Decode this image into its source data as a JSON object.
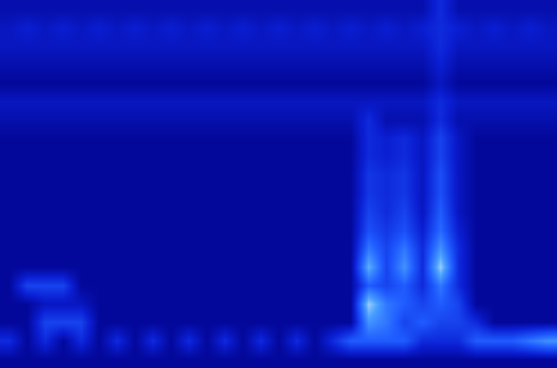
{
  "chart_data": {
    "type": "heatmap",
    "tick_labels": false,
    "grid": false,
    "zlim": [
      0,
      10
    ],
    "cells": [
      [
        1.5,
        1.5,
        1.5,
        1.5,
        1.5,
        1.5,
        1.5,
        1.5,
        1.5,
        1.5,
        1.5,
        1.5,
        1.5,
        1.5,
        1.5,
        1.5,
        1.5,
        1.5,
        1.5,
        1.5,
        1.5,
        1.5,
        1.5,
        1.5,
        3,
        1.5,
        1.5,
        1.5,
        1.5,
        1.5,
        1.5
      ],
      [
        2,
        2.5,
        2,
        2.5,
        2,
        2.5,
        2,
        2.5,
        2,
        2.5,
        2,
        2.5,
        2,
        2.5,
        2,
        2.5,
        2,
        2.5,
        2,
        2.5,
        2,
        2.5,
        2,
        2.5,
        3,
        2.5,
        2,
        2.5,
        2,
        2.5,
        2
      ],
      [
        2,
        2,
        2,
        2,
        2,
        2,
        2,
        2,
        2,
        2,
        2,
        2,
        2,
        2,
        2,
        2,
        2,
        2,
        2,
        2,
        2,
        2,
        2,
        2,
        3,
        2,
        2,
        2,
        2,
        2,
        2
      ],
      [
        1.5,
        1.5,
        1.5,
        1.5,
        1.5,
        1.5,
        1.5,
        1.5,
        1.5,
        1.5,
        1.5,
        1.5,
        1.5,
        1.5,
        1.5,
        1.5,
        1.5,
        1.5,
        1.5,
        1.5,
        1.5,
        1.5,
        1.5,
        1.5,
        2.5,
        1.5,
        1.5,
        1.5,
        1.5,
        1.5,
        1.5
      ],
      [
        1,
        1,
        1,
        1,
        1,
        1,
        1,
        1,
        1,
        1,
        1,
        1,
        1,
        1,
        1,
        1,
        1,
        1,
        1,
        1,
        1,
        1,
        1,
        1,
        2,
        1,
        1,
        1,
        1,
        1,
        1
      ],
      [
        2,
        2,
        2,
        2,
        2,
        2,
        2,
        2,
        2,
        2,
        2,
        2,
        2,
        2,
        2,
        2,
        2,
        2,
        2,
        2,
        2,
        2,
        2,
        2,
        3,
        2,
        2,
        2,
        2,
        2,
        2
      ],
      [
        1.5,
        1.5,
        1.5,
        1.5,
        1.5,
        1.5,
        1.5,
        1.5,
        1.5,
        1.5,
        1.5,
        1.5,
        1.5,
        1.5,
        1.5,
        1.5,
        1.5,
        1.5,
        1.5,
        1.5,
        3,
        1.5,
        1.5,
        1.5,
        3,
        1.5,
        1.5,
        1.5,
        1.5,
        1.5,
        1.5
      ],
      [
        1,
        1,
        1,
        1,
        1,
        1,
        1,
        1,
        1,
        1,
        1,
        1,
        1,
        1,
        1,
        1,
        1,
        1,
        1,
        1,
        3,
        2.5,
        3,
        2,
        4,
        2,
        1,
        1,
        1,
        1,
        1
      ],
      [
        1,
        1,
        1,
        1,
        1,
        1,
        1,
        1,
        1,
        1,
        1,
        1,
        1,
        1,
        1,
        1,
        1,
        1,
        1,
        1,
        3,
        2.5,
        3,
        2,
        4,
        2,
        1,
        1,
        1,
        1,
        1
      ],
      [
        1,
        1,
        1,
        1,
        1,
        1,
        1,
        1,
        1,
        1,
        1,
        1,
        1,
        1,
        1,
        1,
        1,
        1,
        1,
        1,
        3.5,
        3,
        3.5,
        2,
        4.5,
        2,
        1,
        1,
        1,
        1,
        1
      ],
      [
        1,
        1,
        1,
        1,
        1,
        1,
        1,
        1,
        1,
        1,
        1,
        1,
        1,
        1,
        1,
        1,
        1,
        1,
        1,
        1,
        3.5,
        3,
        3.5,
        2,
        4.5,
        2,
        1,
        1,
        1,
        1,
        1
      ],
      [
        1,
        1,
        1,
        1,
        1,
        1,
        1,
        1,
        1,
        1,
        1,
        1,
        1,
        1,
        1,
        1,
        1,
        1,
        1,
        1,
        4,
        3,
        4,
        2,
        5,
        2,
        1,
        1,
        1,
        1,
        1
      ],
      [
        1,
        1,
        1,
        1,
        1,
        1,
        1,
        1,
        1,
        1,
        1,
        1,
        1,
        1,
        1,
        1,
        1,
        1,
        1,
        1,
        4.5,
        3.5,
        4.5,
        2.5,
        5.5,
        2.5,
        1,
        1,
        1,
        1,
        1
      ],
      [
        1,
        1,
        1,
        1,
        1,
        1,
        1,
        1,
        1,
        1,
        1,
        1,
        1,
        1,
        1,
        1,
        1,
        1,
        1,
        1,
        6,
        4,
        6,
        3,
        7,
        3,
        1,
        1,
        1,
        1,
        1
      ],
      [
        1,
        1,
        1,
        1,
        1,
        1,
        1,
        1,
        1,
        1,
        1,
        1,
        1,
        1,
        1,
        1,
        1,
        1,
        1,
        1,
        8,
        4,
        7,
        3,
        9,
        3,
        1,
        1,
        1,
        1,
        1
      ],
      [
        1,
        4,
        4,
        4,
        1,
        1,
        1,
        1,
        1,
        1,
        1,
        1,
        1,
        1,
        1,
        1,
        1,
        1,
        1,
        1,
        5,
        4,
        5,
        3,
        6,
        3,
        1,
        1,
        1,
        1,
        1
      ],
      [
        1,
        1,
        2,
        2,
        2,
        1,
        1,
        1,
        1,
        1,
        1,
        1,
        1,
        1,
        1,
        1,
        1,
        1,
        1,
        1,
        9,
        6,
        5,
        4,
        5,
        4,
        1,
        1,
        1,
        1,
        1
      ],
      [
        1,
        1,
        4,
        4,
        4,
        1,
        1,
        1,
        1,
        1,
        1,
        1,
        1,
        1,
        1,
        1,
        1,
        1,
        1,
        1,
        7,
        6,
        4,
        5,
        4,
        4,
        3,
        1,
        1,
        1,
        1
      ],
      [
        3,
        1,
        3,
        1,
        3,
        1,
        3,
        1,
        3,
        1,
        3,
        1,
        3,
        1,
        3,
        1,
        3,
        1,
        3,
        5,
        5,
        5,
        5,
        3,
        3,
        3,
        5,
        5,
        5,
        6,
        7
      ],
      [
        1,
        1,
        1,
        1,
        1,
        1,
        1,
        1,
        1,
        1,
        1,
        1,
        1,
        1,
        1,
        1,
        1,
        1,
        1,
        1,
        1,
        1,
        1,
        1,
        1,
        1,
        1,
        1,
        1,
        1,
        1
      ]
    ]
  }
}
